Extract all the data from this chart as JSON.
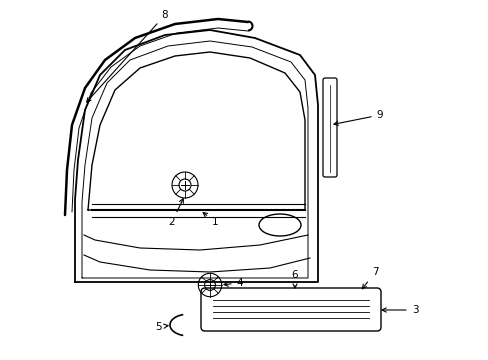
{
  "bg_color": "#ffffff",
  "line_color": "#000000",
  "figsize": [
    4.89,
    3.6
  ],
  "dpi": 100,
  "font_size": 7.5
}
